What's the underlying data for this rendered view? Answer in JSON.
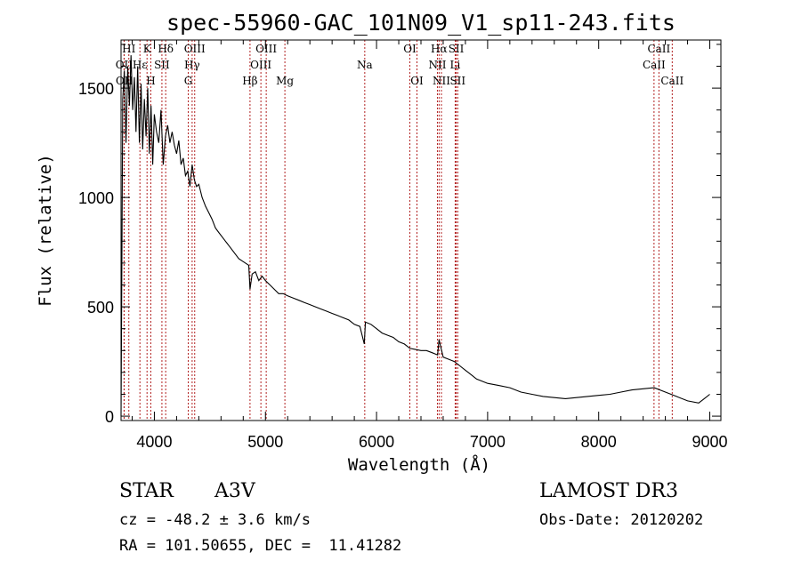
{
  "chart_data": {
    "type": "line",
    "title": "spec-55960-GAC_101N09_V1_sp11-243.fits",
    "xlabel": "Wavelength (Å)",
    "ylabel": "Flux (relative)",
    "xlim": [
      3700,
      9100
    ],
    "ylim": [
      -20,
      1720
    ],
    "xticks": [
      4000,
      5000,
      6000,
      7000,
      8000,
      9000
    ],
    "xtick_labels": [
      "4000",
      "5000",
      "6000",
      "7000",
      "8000",
      "9000"
    ],
    "yticks": [
      0,
      500,
      1000,
      1500
    ],
    "ytick_labels": [
      "0",
      "500",
      "1000",
      "1500"
    ],
    "series": [
      {
        "name": "spectrum",
        "x": [
          3700,
          3715,
          3730,
          3745,
          3760,
          3775,
          3790,
          3805,
          3820,
          3835,
          3850,
          3865,
          3880,
          3895,
          3910,
          3925,
          3940,
          3955,
          3970,
          3985,
          4000,
          4020,
          4040,
          4060,
          4080,
          4100,
          4120,
          4140,
          4160,
          4180,
          4200,
          4220,
          4240,
          4260,
          4280,
          4300,
          4320,
          4340,
          4360,
          4380,
          4400,
          4430,
          4460,
          4490,
          4520,
          4550,
          4580,
          4610,
          4640,
          4670,
          4700,
          4730,
          4760,
          4790,
          4820,
          4850,
          4861,
          4880,
          4910,
          4940,
          4970,
          5000,
          5040,
          5080,
          5120,
          5160,
          5200,
          5250,
          5300,
          5350,
          5400,
          5450,
          5500,
          5550,
          5600,
          5650,
          5700,
          5750,
          5800,
          5850,
          5890,
          5900,
          5950,
          6000,
          6050,
          6100,
          6150,
          6200,
          6250,
          6300,
          6350,
          6400,
          6450,
          6500,
          6550,
          6563,
          6600,
          6650,
          6700,
          6750,
          6800,
          6850,
          6900,
          7000,
          7100,
          7200,
          7300,
          7400,
          7500,
          7600,
          7700,
          7800,
          7900,
          8000,
          8100,
          8200,
          8300,
          8400,
          8500,
          8600,
          8700,
          8800,
          8900,
          8950,
          9000
        ],
        "y": [
          0,
          1450,
          1580,
          1250,
          1600,
          1420,
          1650,
          1400,
          1550,
          1300,
          1600,
          1250,
          1520,
          1220,
          1450,
          1280,
          1500,
          1200,
          1420,
          1150,
          1380,
          1300,
          1250,
          1400,
          1150,
          1280,
          1330,
          1250,
          1300,
          1240,
          1200,
          1260,
          1150,
          1180,
          1100,
          1120,
          1050,
          1150,
          1080,
          1050,
          1060,
          1000,
          960,
          930,
          900,
          860,
          840,
          820,
          800,
          780,
          760,
          740,
          720,
          710,
          700,
          690,
          580,
          650,
          660,
          620,
          640,
          620,
          600,
          580,
          560,
          560,
          550,
          540,
          530,
          520,
          510,
          500,
          490,
          480,
          470,
          460,
          450,
          440,
          420,
          410,
          330,
          430,
          420,
          400,
          380,
          370,
          360,
          340,
          330,
          310,
          305,
          300,
          300,
          290,
          280,
          350,
          270,
          260,
          250,
          230,
          210,
          190,
          170,
          150,
          140,
          130,
          110,
          100,
          90,
          85,
          80,
          85,
          90,
          95,
          100,
          110,
          120,
          125,
          130,
          110,
          90,
          70,
          60,
          80,
          100
        ]
      }
    ],
    "spectral_lines": [
      {
        "label": "HI",
        "wavelength": 3770,
        "row": 0
      },
      {
        "label": "OII",
        "wavelength": 3727,
        "row": 1
      },
      {
        "label": "OII",
        "wavelength": 3729,
        "row": 2
      },
      {
        "label": "K",
        "wavelength": 3934,
        "row": 0
      },
      {
        "label": "Hε",
        "wavelength": 3870,
        "row": 1
      },
      {
        "label": "H",
        "wavelength": 3968,
        "row": 2
      },
      {
        "label": "SII",
        "wavelength": 4068,
        "row": 1
      },
      {
        "label": "Hδ",
        "wavelength": 4102,
        "row": 0
      },
      {
        "label": "OIII",
        "wavelength": 4363,
        "row": 0
      },
      {
        "label": "Hγ",
        "wavelength": 4340,
        "row": 1
      },
      {
        "label": "G",
        "wavelength": 4305,
        "row": 2
      },
      {
        "label": "Hβ",
        "wavelength": 4861,
        "row": 2
      },
      {
        "label": "OIII",
        "wavelength": 5007,
        "row": 0
      },
      {
        "label": "OIII",
        "wavelength": 4959,
        "row": 1
      },
      {
        "label": "Mg",
        "wavelength": 5175,
        "row": 2
      },
      {
        "label": "Na",
        "wavelength": 5894,
        "row": 1
      },
      {
        "label": "OI",
        "wavelength": 6300,
        "row": 0
      },
      {
        "label": "OI",
        "wavelength": 6364,
        "row": 2
      },
      {
        "label": "Hα",
        "wavelength": 6563,
        "row": 0
      },
      {
        "label": "NII",
        "wavelength": 6548,
        "row": 1
      },
      {
        "label": "NII",
        "wavelength": 6584,
        "row": 2
      },
      {
        "label": "SII",
        "wavelength": 6717,
        "row": 0
      },
      {
        "label": "Li",
        "wavelength": 6708,
        "row": 1
      },
      {
        "label": "SII",
        "wavelength": 6731,
        "row": 2
      },
      {
        "label": "CaII",
        "wavelength": 8542,
        "row": 0
      },
      {
        "label": "CaII",
        "wavelength": 8498,
        "row": 1
      },
      {
        "label": "CaII",
        "wavelength": 8662,
        "row": 2
      }
    ]
  },
  "info": {
    "class_label": "STAR",
    "subclass": "A3V",
    "survey": "LAMOST DR3",
    "cz": "cz = -48.2 ± 3.6 km/s",
    "obs_date": "Obs-Date: 20120202",
    "coords": "RA = 101.50655, DEC =  11.41282"
  }
}
